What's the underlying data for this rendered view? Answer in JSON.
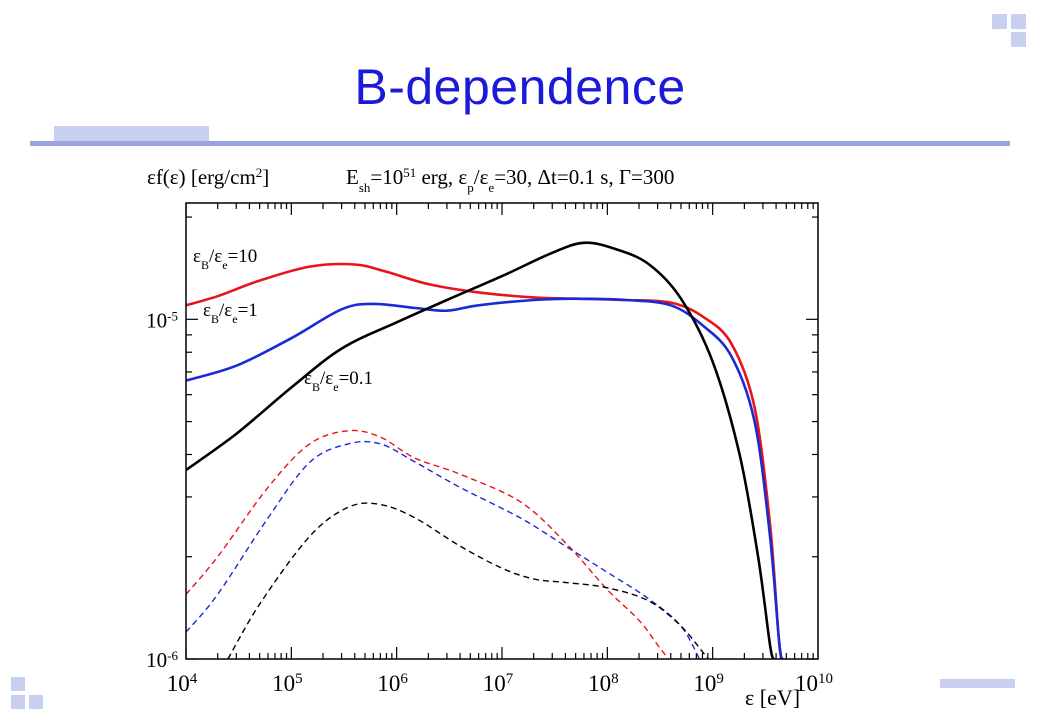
{
  "slide": {
    "title": "B-dependence",
    "colors": {
      "title": "#1a1ad8",
      "accent_bar": "#9aa3df",
      "decor": "#c9d0ef"
    }
  },
  "chart_data": {
    "type": "line",
    "log_x": true,
    "log_y": true,
    "xlim": [
      10000,
      10000000000
    ],
    "ylim": [
      1e-06,
      2.2e-05
    ],
    "grid": false,
    "ylabel": {
      "main": "εf(ε) [erg/cm",
      "sup": "2",
      "end": "]"
    },
    "title": {
      "a": "E",
      "a_sub": "sh",
      "b": "=10",
      "b_sup": "51",
      "c": " erg,  ε",
      "c_sub": "p",
      "d": "/ε",
      "d_sub": "e",
      "e": "=30, Δt=0.1 s, Γ=300"
    },
    "xlabel": "ε [eV]",
    "x_ticks": [
      {
        "value": 10000,
        "base": "10",
        "exp": "4"
      },
      {
        "value": 100000,
        "base": "10",
        "exp": "5"
      },
      {
        "value": 1000000,
        "base": "10",
        "exp": "6"
      },
      {
        "value": 10000000,
        "base": "10",
        "exp": "7"
      },
      {
        "value": 100000000,
        "base": "10",
        "exp": "8"
      },
      {
        "value": 1000000000,
        "base": "10",
        "exp": "9"
      },
      {
        "value": 10000000000,
        "base": "10",
        "exp": "10"
      }
    ],
    "y_ticks": [
      {
        "value": 1e-06,
        "base": "10",
        "exp": "-6"
      },
      {
        "value": 1e-05,
        "base": "10",
        "exp": "-5"
      }
    ],
    "series": [
      {
        "name": "εB/εe=10",
        "label": {
          "p": "ε",
          "s1": "B",
          "m": "/ε",
          "s2": "e",
          "v": "=10"
        },
        "color": "#e8141b",
        "dash": false,
        "points": [
          [
            10000,
            1.1e-05
          ],
          [
            20000,
            1.17e-05
          ],
          [
            50000,
            1.3e-05
          ],
          [
            150000,
            1.43e-05
          ],
          [
            400000,
            1.45e-05
          ],
          [
            800000,
            1.38e-05
          ],
          [
            2000000,
            1.27e-05
          ],
          [
            6000000,
            1.2e-05
          ],
          [
            20000000,
            1.16e-05
          ],
          [
            50000000,
            1.15e-05
          ],
          [
            150000000,
            1.14e-05
          ],
          [
            400000000,
            1.12e-05
          ],
          [
            800000000,
            1.02e-05
          ],
          [
            1500000000,
            8.5e-06
          ],
          [
            2500000000,
            5.5e-06
          ],
          [
            3500000000,
            2.5e-06
          ],
          [
            4200000000,
            1.2e-06
          ],
          [
            4500000000,
            1e-06
          ]
        ]
      },
      {
        "name": "εB/εe=1",
        "label": {
          "p": "ε",
          "s1": "B",
          "m": "/ε",
          "s2": "e",
          "v": "=1"
        },
        "color": "#1a2bd6",
        "dash": false,
        "points": [
          [
            10000,
            6.6e-06
          ],
          [
            30000,
            7.3e-06
          ],
          [
            100000,
            8.8e-06
          ],
          [
            300000,
            1.07e-05
          ],
          [
            600000,
            1.11e-05
          ],
          [
            1500000,
            1.08e-05
          ],
          [
            3000000,
            1.06e-05
          ],
          [
            6000000,
            1.1e-05
          ],
          [
            20000000,
            1.14e-05
          ],
          [
            50000000,
            1.15e-05
          ],
          [
            150000000,
            1.14e-05
          ],
          [
            400000000,
            1.1e-05
          ],
          [
            800000000,
            9.6e-06
          ],
          [
            1500000000,
            7.8e-06
          ],
          [
            2500000000,
            5e-06
          ],
          [
            3500000000,
            2.3e-06
          ],
          [
            4300000000,
            1.1e-06
          ],
          [
            4600000000,
            1e-06
          ]
        ]
      },
      {
        "name": "εB/εe=0.1",
        "label": {
          "p": "ε",
          "s1": "B",
          "m": "/ε",
          "s2": "e",
          "v": "=0.1"
        },
        "color": "#000000",
        "dash": false,
        "points": [
          [
            10000,
            3.6e-06
          ],
          [
            30000,
            4.6e-06
          ],
          [
            100000,
            6.3e-06
          ],
          [
            300000,
            8.2e-06
          ],
          [
            1000000,
            9.8e-06
          ],
          [
            3000000,
            1.14e-05
          ],
          [
            10000000,
            1.34e-05
          ],
          [
            30000000,
            1.57e-05
          ],
          [
            60000000,
            1.68e-05
          ],
          [
            120000000,
            1.61e-05
          ],
          [
            250000000,
            1.45e-05
          ],
          [
            500000000,
            1.15e-05
          ],
          [
            1000000000,
            7.5e-06
          ],
          [
            1800000000,
            4e-06
          ],
          [
            2700000000,
            2e-06
          ],
          [
            3500000000,
            1.1e-06
          ],
          [
            3800000000,
            1e-06
          ]
        ]
      },
      {
        "name": "red dashed",
        "color": "#e8141b",
        "dash": true,
        "points": [
          [
            10000,
            1.55e-06
          ],
          [
            20000,
            2e-06
          ],
          [
            60000,
            3.2e-06
          ],
          [
            150000,
            4.3e-06
          ],
          [
            350000,
            4.7e-06
          ],
          [
            700000,
            4.5e-06
          ],
          [
            1500000,
            3.9e-06
          ],
          [
            4000000,
            3.5e-06
          ],
          [
            15000000,
            2.9e-06
          ],
          [
            40000000,
            2.2e-06
          ],
          [
            100000000,
            1.6e-06
          ],
          [
            200000000,
            1.3e-06
          ],
          [
            300000000,
            1.1e-06
          ],
          [
            380000000,
            1e-06
          ]
        ]
      },
      {
        "name": "blue dashed",
        "color": "#1a2bd6",
        "dash": true,
        "points": [
          [
            10000,
            1.2e-06
          ],
          [
            20000,
            1.55e-06
          ],
          [
            60000,
            2.6e-06
          ],
          [
            150000,
            3.8e-06
          ],
          [
            350000,
            4.3e-06
          ],
          [
            700000,
            4.3e-06
          ],
          [
            1500000,
            3.8e-06
          ],
          [
            4000000,
            3.2e-06
          ],
          [
            15000000,
            2.6e-06
          ],
          [
            40000000,
            2.15e-06
          ],
          [
            100000000,
            1.8e-06
          ],
          [
            250000000,
            1.5e-06
          ],
          [
            500000000,
            1.25e-06
          ],
          [
            750000000,
            1e-06
          ]
        ]
      },
      {
        "name": "black dashed",
        "color": "#000000",
        "dash": true,
        "points": [
          [
            25000,
            1e-06
          ],
          [
            50000,
            1.45e-06
          ],
          [
            150000,
            2.3e-06
          ],
          [
            350000,
            2.8e-06
          ],
          [
            700000,
            2.85e-06
          ],
          [
            1500000,
            2.6e-06
          ],
          [
            4000000,
            2.15e-06
          ],
          [
            10000000,
            1.85e-06
          ],
          [
            20000000,
            1.72e-06
          ],
          [
            40000000,
            1.68e-06
          ],
          [
            100000000,
            1.62e-06
          ],
          [
            250000000,
            1.48e-06
          ],
          [
            500000000,
            1.25e-06
          ],
          [
            800000000,
            1.05e-06
          ],
          [
            900000000,
            1e-06
          ]
        ]
      }
    ]
  }
}
